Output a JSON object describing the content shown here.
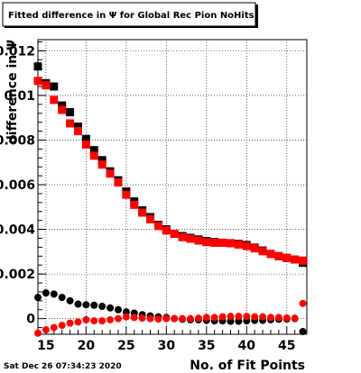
{
  "chart_data": {
    "type": "scatter",
    "title": "Fitted difference in  Ψ  for Global Rec Pion NoHits",
    "xlabel": "No. of Fit Points",
    "ylabel": "difference in Ψ",
    "xlim": [
      14,
      47.5
    ],
    "ylim": [
      -0.0007,
      0.0125
    ],
    "xticks": [
      15,
      20,
      25,
      30,
      35,
      40,
      45
    ],
    "yticks": [
      0,
      0.002,
      0.004,
      0.006,
      0.008,
      0.01,
      0.012
    ],
    "ytick_labels": [
      "0",
      "0.002",
      "0.004",
      "0.006",
      "0.008",
      "0.01",
      "0.012"
    ],
    "grid": true,
    "footer": "Sat Dec 26 07:34:23 2020",
    "x": [
      14,
      15,
      16,
      17,
      18,
      19,
      20,
      21,
      22,
      23,
      24,
      25,
      26,
      27,
      28,
      29,
      30,
      31,
      32,
      33,
      34,
      35,
      36,
      37,
      38,
      39,
      40,
      41,
      42,
      43,
      44,
      45,
      46,
      47
    ],
    "series": [
      {
        "marker": "square",
        "color": "#000000",
        "values": [
          0.0113,
          0.01055,
          0.0104,
          0.00955,
          0.00925,
          0.0086,
          0.00805,
          0.00755,
          0.0071,
          0.0066,
          0.0062,
          0.0057,
          0.00525,
          0.00485,
          0.00455,
          0.0042,
          0.004,
          0.0038,
          0.0037,
          0.00362,
          0.00355,
          0.00348,
          0.00343,
          0.0034,
          0.00338,
          0.00335,
          0.0033,
          0.00318,
          0.00305,
          0.0029,
          0.0028,
          0.00272,
          0.00265,
          0.0025
        ]
      },
      {
        "marker": "square",
        "color": "#ff0000",
        "values": [
          0.01065,
          0.01045,
          0.0098,
          0.00935,
          0.00875,
          0.0084,
          0.0078,
          0.0073,
          0.0069,
          0.0065,
          0.0061,
          0.00555,
          0.0051,
          0.00475,
          0.00445,
          0.00415,
          0.00395,
          0.0038,
          0.00365,
          0.00358,
          0.0035,
          0.00343,
          0.0034,
          0.0034,
          0.00338,
          0.00332,
          0.00325,
          0.00315,
          0.00302,
          0.0029,
          0.0028,
          0.00272,
          0.00265,
          0.0026
        ]
      },
      {
        "marker": "circle",
        "color": "#000000",
        "values": [
          0.00095,
          0.00115,
          0.0011,
          0.00095,
          0.0008,
          0.00065,
          0.00062,
          0.0006,
          0.00055,
          0.00048,
          0.0004,
          0.0003,
          0.00025,
          0.00018,
          0.00012,
          8e-05,
          5e-05,
          0.0,
          -3e-05,
          -5e-05,
          -5e-05,
          -8e-05,
          -0.0001,
          -0.0001,
          -0.00012,
          -0.00012,
          -0.0001,
          -8e-05,
          -8e-05,
          -5e-05,
          -3e-05,
          -2e-05,
          0.0,
          -0.00058
        ]
      },
      {
        "marker": "circle",
        "color": "#ff0000",
        "values": [
          -0.00065,
          -0.0005,
          -0.0004,
          -0.0003,
          -0.0002,
          -0.00015,
          -5e-05,
          -0.0001,
          -0.0001,
          -5e-05,
          0.0,
          8e-05,
          5e-05,
          2e-05,
          0.0,
          -2e-05,
          0.0,
          0.0,
          0.0,
          0.0,
          2e-05,
          5e-05,
          5e-05,
          8e-05,
          0.0001,
          0.0001,
          0.0001,
          8e-05,
          8e-05,
          5e-05,
          5e-05,
          3e-05,
          2e-05,
          0.00068
        ]
      }
    ]
  }
}
